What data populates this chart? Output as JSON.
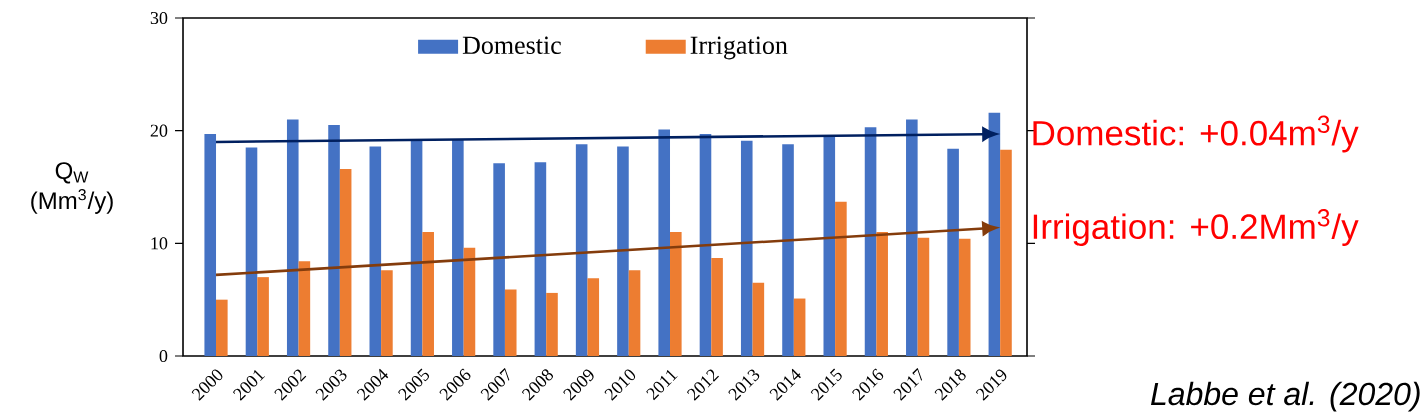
{
  "chart_data": {
    "type": "bar",
    "categories": [
      "2000",
      "2001",
      "2002",
      "2003",
      "2004",
      "2005",
      "2006",
      "2007",
      "2008",
      "2009",
      "2010",
      "2011",
      "2012",
      "2013",
      "2014",
      "2015",
      "2016",
      "2017",
      "2018",
      "2019"
    ],
    "ylabel": "Q$_{W}$ (Mm$^{3}$/y)",
    "ylim": [
      0,
      30
    ],
    "yticks": [
      0,
      10,
      20,
      30
    ],
    "legend": "top",
    "grid": false,
    "series": [
      {
        "name": "Domestic",
        "color": "#4472c4",
        "values": [
          19.7,
          18.5,
          21.0,
          20.5,
          18.6,
          19.2,
          19.2,
          17.1,
          17.2,
          18.8,
          18.6,
          20.1,
          19.7,
          19.1,
          18.8,
          19.5,
          20.3,
          21.0,
          18.4,
          21.6
        ]
      },
      {
        "name": "Irrigation",
        "color": "#ed7d31",
        "values": [
          5.0,
          7.0,
          8.4,
          16.6,
          7.6,
          11.0,
          9.6,
          5.9,
          5.6,
          6.9,
          7.6,
          11.0,
          8.7,
          6.5,
          5.1,
          13.7,
          11.0,
          10.5,
          10.4,
          18.3
        ]
      }
    ],
    "annotations": [
      {
        "text": "Domestic: +0.04m$^{3}$/y",
        "x": "2019",
        "y": 19.7
      },
      {
        "text": "Irrigation: +0.2Mm$^{3}$/y",
        "x": "2019",
        "y": 11.4
      },
      "*Labbe et al. (2020)*"
    ]
  }
}
